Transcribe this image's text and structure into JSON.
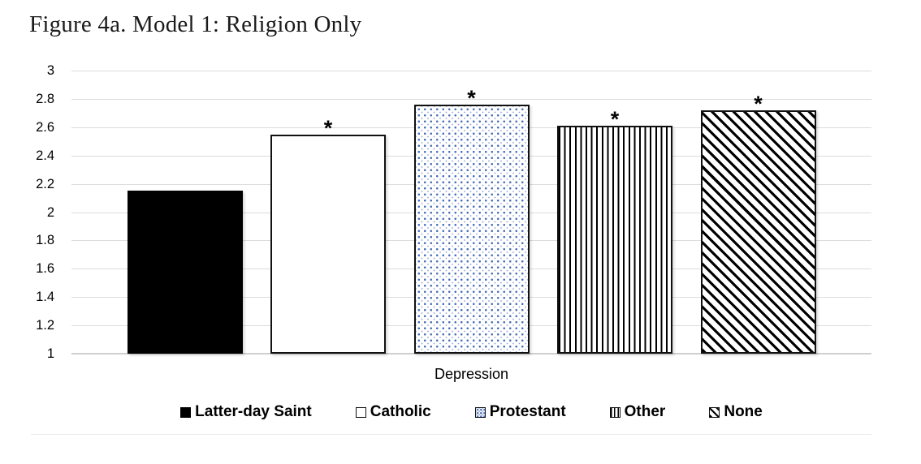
{
  "figure": {
    "title": "Figure 4a. Model 1: Religion Only"
  },
  "chart_data": {
    "type": "bar",
    "title": "Figure 4a. Model 1: Religion Only",
    "categories": [
      "Depression"
    ],
    "xlabel": "Depression",
    "ylabel": "",
    "ylim": [
      1,
      3
    ],
    "yticks": [
      3,
      2.8,
      2.6,
      2.4,
      2.2,
      2,
      1.8,
      1.6,
      1.4,
      1.2,
      1
    ],
    "grid": true,
    "legend_position": "bottom",
    "significance_marker": "*",
    "series": [
      {
        "name": "Latter-day Saint",
        "values": [
          2.15
        ],
        "pattern": "solid-black",
        "significant": false
      },
      {
        "name": "Catholic",
        "values": [
          2.55
        ],
        "pattern": "plain-white",
        "significant": true
      },
      {
        "name": "Protestant",
        "values": [
          2.76
        ],
        "pattern": "blue-dots",
        "significant": true
      },
      {
        "name": "Other",
        "values": [
          2.61
        ],
        "pattern": "vertical-stripes",
        "significant": true
      },
      {
        "name": "None",
        "values": [
          2.72
        ],
        "pattern": "diagonal-stripes",
        "significant": true
      }
    ],
    "colors": {
      "bar_outline": "#111111",
      "dot_fill": "#4a6fb8",
      "gridline": "#dcdcdc",
      "axis_line": "#cfcfcf",
      "text": "#000000"
    }
  }
}
